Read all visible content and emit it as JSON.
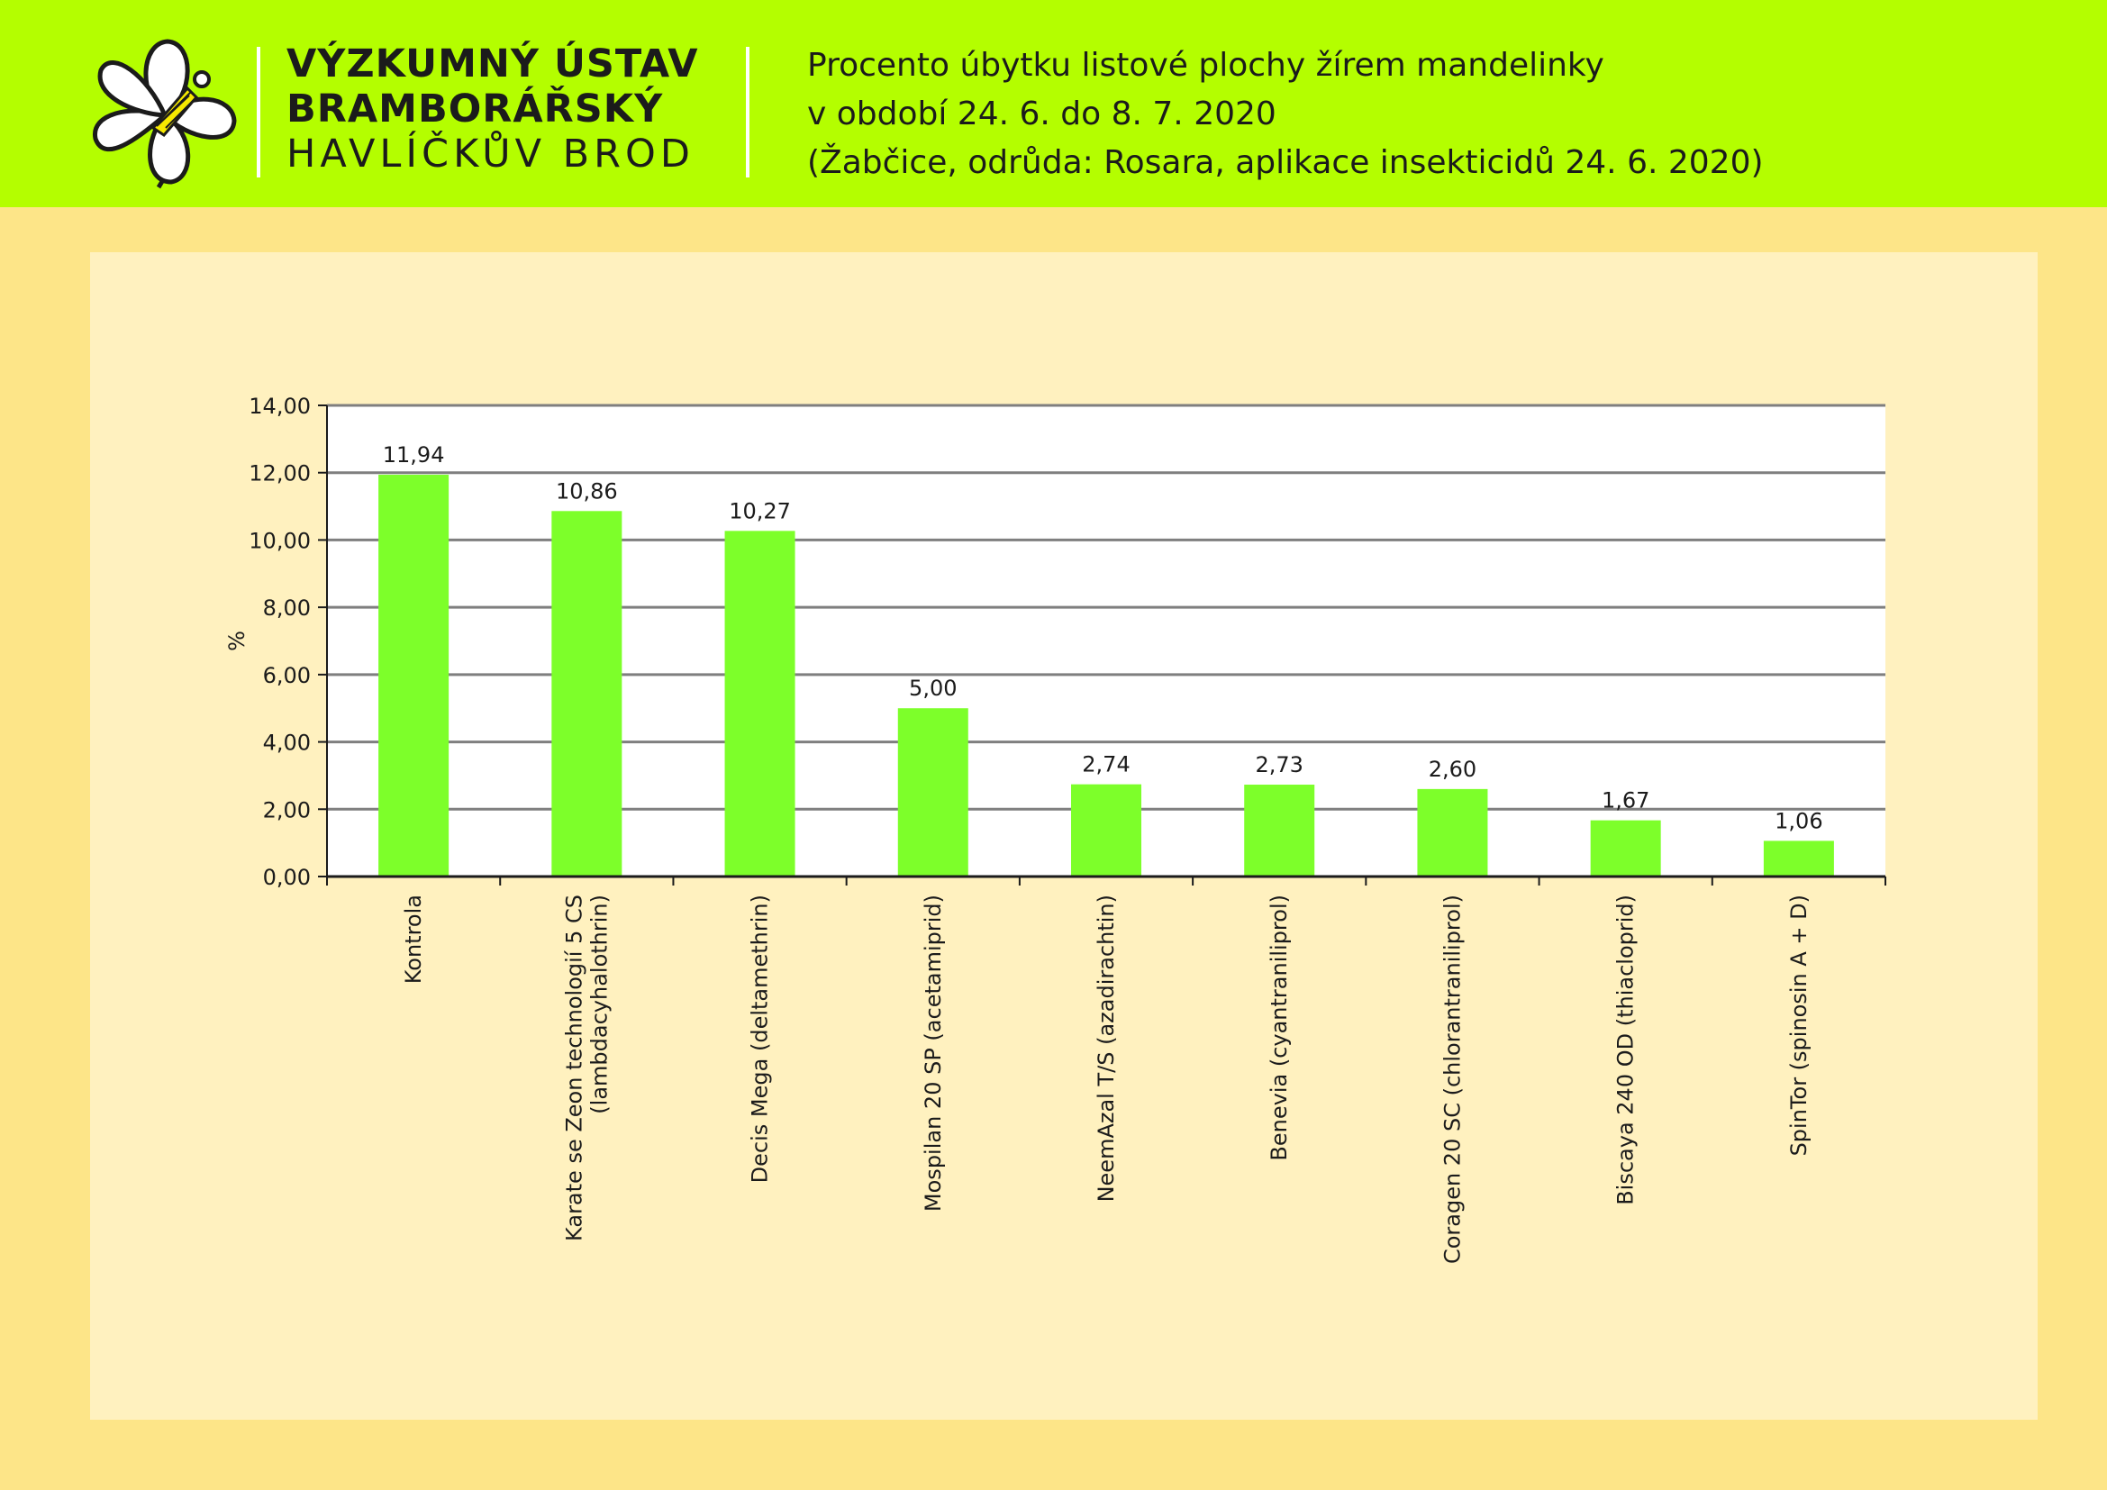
{
  "header": {
    "institute": [
      "VÝZKUMNÝ ÚSTAV",
      "BRAMBORÁŘSKÝ",
      "HAVLÍČKŮV BROD"
    ],
    "title_lines": [
      "Procento úbytku listové plochy žírem mandelinky",
      "v období 24. 6. do 8. 7. 2020",
      "(Žabčice, odrůda: Rosara, aplikace insekticidů 24. 6. 2020)"
    ],
    "logo_icon": "potato-flower-icon"
  },
  "colors": {
    "header_bg": "#b4fe00",
    "page_bg": "#fde588",
    "panel_bg": "#fff1bf",
    "bar": "#7dff2a"
  },
  "chart_data": {
    "type": "bar",
    "title": "",
    "xlabel": "",
    "ylabel": "%",
    "ylim": [
      0,
      14
    ],
    "yticks": [
      "0,00",
      "2,00",
      "4,00",
      "6,00",
      "8,00",
      "10,00",
      "12,00",
      "14,00"
    ],
    "grid": true,
    "legend": "none",
    "categories": [
      [
        "Kontrola"
      ],
      [
        "Karate se Zeon technologií 5 CS",
        "(lambdacyhalothrin)"
      ],
      [
        "Decis Mega (deltamethrin)"
      ],
      [
        "Mospilan 20 SP (acetamiprid)"
      ],
      [
        "NeemAzal T/S (azadirachtin)"
      ],
      [
        "Benevia (cyantraniliprol)"
      ],
      [
        "Coragen 20 SC (chlorantraniliprol)"
      ],
      [
        "Biscaya 240 OD (thiacloprid)"
      ],
      [
        "SpinTor (spinosin A + D)"
      ]
    ],
    "values": [
      11.94,
      10.86,
      10.27,
      5.0,
      2.74,
      2.73,
      2.6,
      1.67,
      1.06
    ],
    "value_labels": [
      "11,94",
      "10,86",
      "10,27",
      "5,00",
      "2,74",
      "2,73",
      "2,60",
      "1,67",
      "1,06"
    ]
  }
}
